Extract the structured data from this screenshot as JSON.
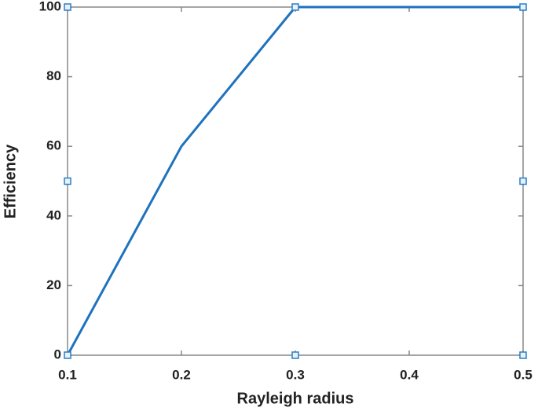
{
  "chart_data": {
    "type": "line",
    "x_label": "Rayleigh radius",
    "y_label": "Efficiency",
    "x": [
      0.1,
      0.2,
      0.3,
      0.4,
      0.5
    ],
    "series": [
      {
        "color": "#1f72bd",
        "values": [
          0,
          60,
          100,
          100,
          100
        ]
      }
    ],
    "xlim": [
      0.1,
      0.5
    ],
    "xticks": [
      0.1,
      0.2,
      0.3,
      0.4,
      0.5
    ],
    "ylim": [
      0,
      100
    ],
    "yticks": [
      0,
      20,
      40,
      60,
      80,
      100
    ],
    "grid": false
  }
}
